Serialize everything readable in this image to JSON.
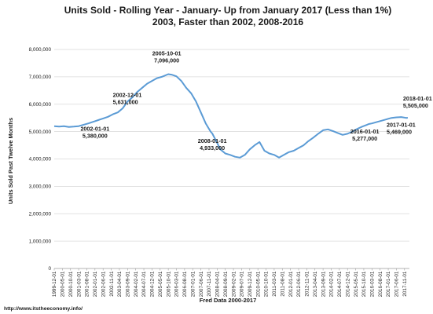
{
  "chart_data": {
    "type": "line",
    "title": "Units Sold - Rolling Year - January- Up from  January 2017 (Less than 1%)",
    "subtitle": "2003, Faster than 2002, 2008-2016",
    "ylabel": "Units Sold Past Twelve Months",
    "xlabel": "Fred Data 2000-2017",
    "source": "http://www.itstheeconomy.info/",
    "ylim": [
      0,
      8000000
    ],
    "y_ticks": [
      "0",
      "1,000,000",
      "2,000,000",
      "3,000,000",
      "4,000,000",
      "5,000,000",
      "6,000,000",
      "7,000,000",
      "8,000,000"
    ],
    "x_tick_labels": [
      "1999-12-01",
      "2000-05-01",
      "2000-10-01",
      "2001-03-01",
      "2001-08-01",
      "2002-01-01",
      "2002-06-01",
      "2002-11-01",
      "2003-04-01",
      "2003-09-01",
      "2004-02-01",
      "2004-07-01",
      "2004-12-01",
      "2005-05-01",
      "2005-10-01",
      "2006-03-01",
      "2006-08-01",
      "2007-01-01",
      "2007-06-01",
      "2007-11-01",
      "2008-04-01",
      "2008-09-01",
      "2009-02-01",
      "2009-07-01",
      "2009-12-01",
      "2010-05-01",
      "2010-10-01",
      "2011-03-01",
      "2011-08-01",
      "2012-01-01",
      "2012-06-01",
      "2012-11-01",
      "2013-04-01",
      "2013-09-01",
      "2014-02-01",
      "2014-07-01",
      "2014-12-01",
      "2015-05-01",
      "2015-10-01",
      "2016-03-01",
      "2016-08-01",
      "2017-01-01",
      "2017-06-01",
      "2017-11-01"
    ],
    "grid": true,
    "line_color": "#5b9bd5",
    "series": [
      {
        "x": [
          "1999-12",
          "2000-03",
          "2000-06",
          "2000-09",
          "2000-12",
          "2001-03",
          "2001-06",
          "2001-09",
          "2001-12",
          "2002-01",
          "2002-03",
          "2002-06",
          "2002-09",
          "2002-12",
          "2003-03",
          "2003-06",
          "2003-09",
          "2003-12",
          "2004-03",
          "2004-06",
          "2004-09",
          "2004-12",
          "2005-03",
          "2005-06",
          "2005-10",
          "2005-12",
          "2006-03",
          "2006-06",
          "2006-09",
          "2006-12",
          "2007-03",
          "2007-06",
          "2007-09",
          "2007-12",
          "2008-01",
          "2008-03",
          "2008-06",
          "2008-09",
          "2008-12",
          "2009-03",
          "2009-06",
          "2009-09",
          "2009-12",
          "2010-03",
          "2010-06",
          "2010-09",
          "2010-12",
          "2011-03",
          "2011-06",
          "2011-09",
          "2011-12",
          "2012-03",
          "2012-06",
          "2012-09",
          "2012-12",
          "2013-03",
          "2013-06",
          "2013-09",
          "2013-12",
          "2014-03",
          "2014-06",
          "2014-09",
          "2014-12",
          "2015-03",
          "2015-06",
          "2015-09",
          "2015-12",
          "2016-01",
          "2016-03",
          "2016-06",
          "2016-09",
          "2016-12",
          "2017-01",
          "2017-03",
          "2017-06",
          "2017-09",
          "2017-12",
          "2018-01"
        ],
        "y": [
          5200000,
          5180000,
          5200000,
          5170000,
          5180000,
          5200000,
          5250000,
          5300000,
          5360000,
          5380000,
          5420000,
          5480000,
          5540000,
          5631000,
          5700000,
          5850000,
          6100000,
          6250000,
          6450000,
          6600000,
          6750000,
          6850000,
          6950000,
          7000000,
          7096000,
          7080000,
          7020000,
          6850000,
          6600000,
          6400000,
          6100000,
          5700000,
          5300000,
          5000000,
          4933000,
          4700000,
          4350000,
          4200000,
          4150000,
          4080000,
          4050000,
          4150000,
          4350000,
          4500000,
          4620000,
          4300000,
          4200000,
          4150000,
          4050000,
          4150000,
          4250000,
          4300000,
          4400000,
          4500000,
          4650000,
          4780000,
          4920000,
          5050000,
          5080000,
          5020000,
          4950000,
          4880000,
          4920000,
          5000000,
          5100000,
          5180000,
          5250000,
          5277000,
          5300000,
          5350000,
          5400000,
          5450000,
          5469000,
          5500000,
          5520000,
          5530000,
          5500000,
          5505000
        ]
      }
    ],
    "annotations": [
      {
        "date": "2002-01-01",
        "value": "5,380,000"
      },
      {
        "date": "2002-12-01",
        "value": "5,631,000"
      },
      {
        "date": "2005-10-01",
        "value": "7,096,000"
      },
      {
        "date": "2008-01-01",
        "value": "4,933,000"
      },
      {
        "date": "2016-01-01",
        "value": "5,277,000"
      },
      {
        "date": "2017-01-01",
        "value": "5,469,000"
      },
      {
        "date": "2018-01-01",
        "value": "5,505,000"
      }
    ]
  }
}
